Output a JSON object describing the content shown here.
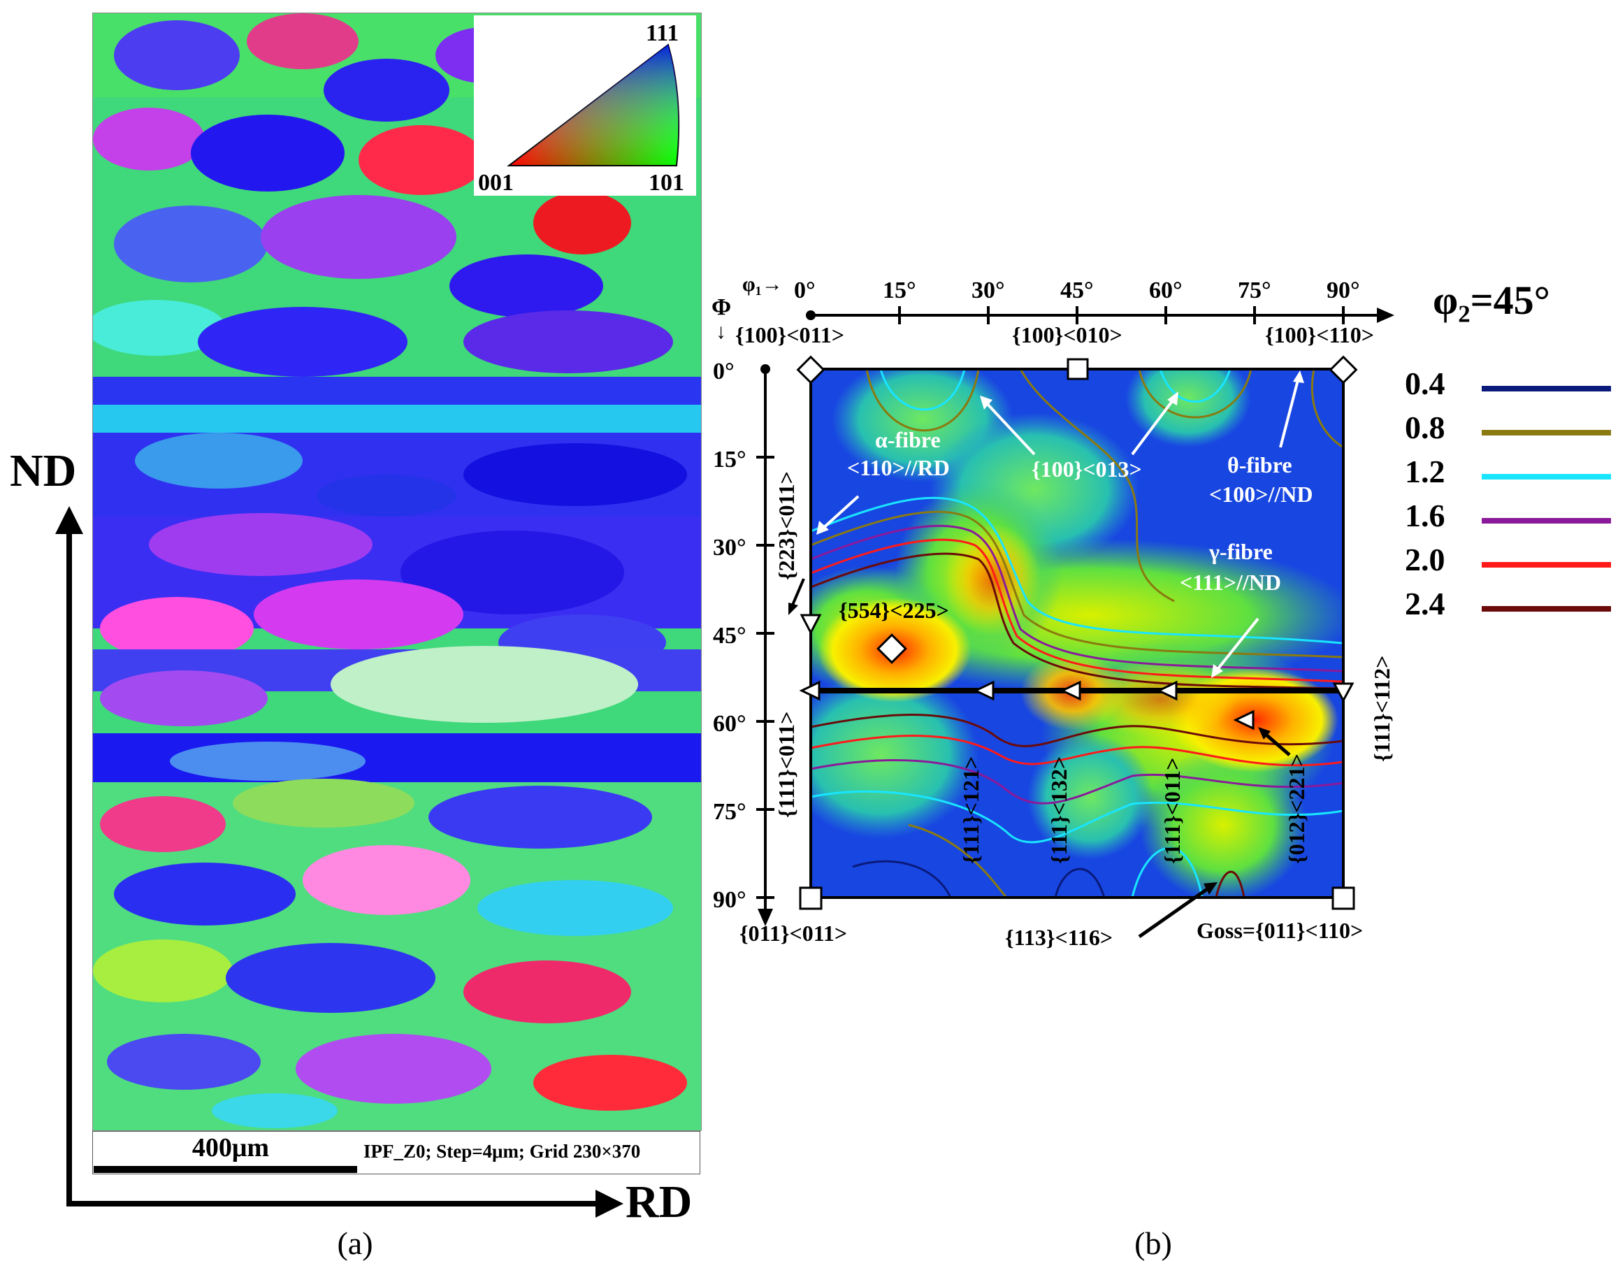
{
  "panel_a": {
    "ipf_key": {
      "corner_top": "111",
      "corner_left": "001",
      "corner_right": "101"
    },
    "scale_bar_label": "400μm",
    "scan_info": "IPF_Z0; Step=4μm; Grid 230×370",
    "axis_vertical": "ND",
    "axis_horizontal": "RD",
    "panel_label": "(a)"
  },
  "panel_b": {
    "title": "φ₂=45°",
    "phi1_axis_symbol": "φ₁→",
    "Phi_axis_symbol": "Φ",
    "phi1_ticks": [
      "0°",
      "15°",
      "30°",
      "45°",
      "60°",
      "75°",
      "90°"
    ],
    "Phi_ticks": [
      "0°",
      "15°",
      "30°",
      "45°",
      "60°",
      "75°",
      "90°"
    ],
    "legend": [
      {
        "value": "0.4",
        "color": "#0a1a7a"
      },
      {
        "value": "0.8",
        "color": "#8a7a10"
      },
      {
        "value": "1.2",
        "color": "#19e5ff"
      },
      {
        "value": "1.6",
        "color": "#8a1a9a"
      },
      {
        "value": "2.0",
        "color": "#ff1a1a"
      },
      {
        "value": "2.4",
        "color": "#6a0a0a"
      }
    ],
    "component_labels": {
      "top_left": "{100}<011>",
      "top_mid": "{100}<010>",
      "top_right": "{100}<110>",
      "bottom_left": "{011}<011>",
      "bottom_mid": "{113}<116>",
      "bottom_right": "Goss={011}<110>",
      "alpha_fibre_name": "α-fibre",
      "alpha_fibre_dir": "<110>//RD",
      "theta_fibre_name": "θ-fibre",
      "theta_fibre_dir": "<100>//ND",
      "gamma_fibre_name": "γ-fibre",
      "gamma_fibre_dir": "<111>//ND",
      "comp_100_013": "{100}<013>",
      "comp_554_225": "{554}<225>",
      "comp_223_011": "{223}<011>",
      "comp_111_011_left": "{111}<011>",
      "comp_111_112": "{111}<112>",
      "comp_111_121": "{111}<121>",
      "comp_111_132": "{111}<132>",
      "comp_111_011_mid": "{111}<011>",
      "comp_012_221": "{012}<221>"
    },
    "panel_label": "(b)"
  }
}
